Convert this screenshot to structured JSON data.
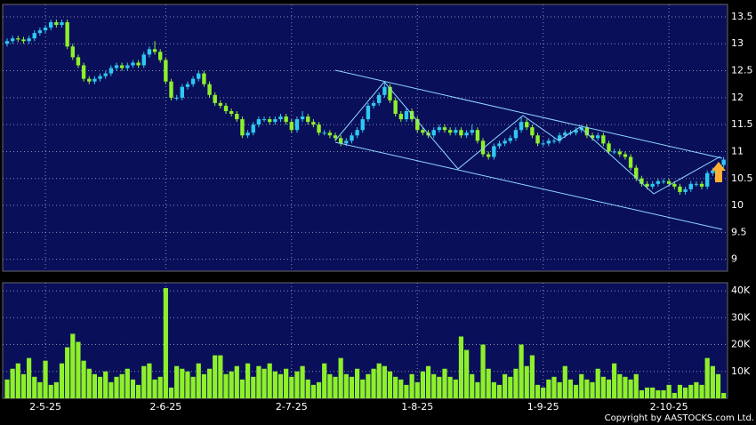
{
  "chart_data": {
    "type": "candlestick",
    "copyright": "Copyright by AASTOCKS.com Ltd.",
    "up_color": "#2ec8f0",
    "down_color": "#8ef02a",
    "volume_color": "#8ef02a",
    "grid": true,
    "categories": [
      null,
      null,
      null,
      null,
      null,
      null,
      null,
      "2-5-25",
      null,
      null,
      null,
      null,
      null,
      null,
      null,
      null,
      null,
      null,
      null,
      null,
      null,
      null,
      null,
      null,
      null,
      null,
      null,
      null,
      null,
      "2-6-25",
      null,
      null,
      null,
      null,
      null,
      null,
      null,
      null,
      null,
      null,
      null,
      null,
      null,
      null,
      null,
      null,
      null,
      null,
      null,
      null,
      null,
      null,
      "2-7-25",
      null,
      null,
      null,
      null,
      null,
      null,
      null,
      null,
      null,
      null,
      null,
      null,
      null,
      null,
      null,
      null,
      null,
      null,
      null,
      null,
      null,
      null,
      "1-8-25",
      null,
      null,
      null,
      null,
      null,
      null,
      null,
      null,
      null,
      null,
      null,
      null,
      null,
      null,
      null,
      null,
      null,
      null,
      null,
      null,
      null,
      null,
      "1-9-25",
      null,
      null,
      null,
      null,
      null,
      null,
      null,
      null,
      null,
      null,
      null,
      null,
      null,
      null,
      null,
      null,
      null,
      null,
      null,
      null,
      null,
      null,
      "2-10-25",
      null,
      null,
      null,
      null,
      null,
      null,
      null,
      null,
      null,
      null
    ],
    "ohlc": [
      [
        13.0,
        13.1,
        12.95,
        13.05
      ],
      [
        13.05,
        13.15,
        13.0,
        13.1
      ],
      [
        13.1,
        13.15,
        13.03,
        13.08
      ],
      [
        13.08,
        13.13,
        13.0,
        13.05
      ],
      [
        13.05,
        13.15,
        13.0,
        13.1
      ],
      [
        13.1,
        13.25,
        13.05,
        13.2
      ],
      [
        13.2,
        13.3,
        13.15,
        13.25
      ],
      [
        13.25,
        13.35,
        13.2,
        13.3
      ],
      [
        13.3,
        13.45,
        13.25,
        13.4
      ],
      [
        13.4,
        13.45,
        13.3,
        13.35
      ],
      [
        13.35,
        13.45,
        13.3,
        13.4
      ],
      [
        13.4,
        13.45,
        12.9,
        12.95
      ],
      [
        12.95,
        13.0,
        12.7,
        12.75
      ],
      [
        12.75,
        12.8,
        12.55,
        12.6
      ],
      [
        12.6,
        12.65,
        12.3,
        12.35
      ],
      [
        12.35,
        12.4,
        12.25,
        12.3
      ],
      [
        12.3,
        12.4,
        12.25,
        12.35
      ],
      [
        12.35,
        12.45,
        12.3,
        12.4
      ],
      [
        12.4,
        12.5,
        12.35,
        12.45
      ],
      [
        12.45,
        12.6,
        12.4,
        12.55
      ],
      [
        12.55,
        12.65,
        12.5,
        12.6
      ],
      [
        12.6,
        12.65,
        12.5,
        12.55
      ],
      [
        12.55,
        12.65,
        12.5,
        12.6
      ],
      [
        12.6,
        12.7,
        12.55,
        12.65
      ],
      [
        12.65,
        12.7,
        12.55,
        12.6
      ],
      [
        12.6,
        12.85,
        12.55,
        12.8
      ],
      [
        12.8,
        12.95,
        12.75,
        12.9
      ],
      [
        12.9,
        13.05,
        12.8,
        12.85
      ],
      [
        12.85,
        12.9,
        12.65,
        12.7
      ],
      [
        12.7,
        12.75,
        12.25,
        12.3
      ],
      [
        12.3,
        12.35,
        11.95,
        12.0
      ],
      [
        12.0,
        12.05,
        11.95,
        12.0
      ],
      [
        12.0,
        12.25,
        11.95,
        12.2
      ],
      [
        12.2,
        12.3,
        12.15,
        12.25
      ],
      [
        12.25,
        12.4,
        12.2,
        12.35
      ],
      [
        12.35,
        12.5,
        12.3,
        12.45
      ],
      [
        12.45,
        12.5,
        12.2,
        12.25
      ],
      [
        12.25,
        12.3,
        12.0,
        12.05
      ],
      [
        12.05,
        12.1,
        11.85,
        11.9
      ],
      [
        11.9,
        11.95,
        11.8,
        11.85
      ],
      [
        11.85,
        11.9,
        11.7,
        11.75
      ],
      [
        11.75,
        11.8,
        11.65,
        11.7
      ],
      [
        11.7,
        11.75,
        11.55,
        11.6
      ],
      [
        11.6,
        11.65,
        11.25,
        11.3
      ],
      [
        11.3,
        11.4,
        11.25,
        11.35
      ],
      [
        11.35,
        11.55,
        11.3,
        11.5
      ],
      [
        11.5,
        11.65,
        11.45,
        11.6
      ],
      [
        11.6,
        11.65,
        11.55,
        11.6
      ],
      [
        11.6,
        11.65,
        11.5,
        11.55
      ],
      [
        11.55,
        11.65,
        11.5,
        11.6
      ],
      [
        11.6,
        11.7,
        11.55,
        11.65
      ],
      [
        11.65,
        11.7,
        11.5,
        11.55
      ],
      [
        11.55,
        11.6,
        11.35,
        11.4
      ],
      [
        11.4,
        11.65,
        11.35,
        11.6
      ],
      [
        11.6,
        11.75,
        11.55,
        11.65
      ],
      [
        11.65,
        11.7,
        11.5,
        11.55
      ],
      [
        11.55,
        11.6,
        11.45,
        11.5
      ],
      [
        11.5,
        11.55,
        11.3,
        11.35
      ],
      [
        11.35,
        11.4,
        11.3,
        11.35
      ],
      [
        11.35,
        11.4,
        11.25,
        11.3
      ],
      [
        11.3,
        11.35,
        11.2,
        11.25
      ],
      [
        11.25,
        11.3,
        11.1,
        11.15
      ],
      [
        11.15,
        11.25,
        11.1,
        11.2
      ],
      [
        11.2,
        11.35,
        11.15,
        11.3
      ],
      [
        11.3,
        11.45,
        11.25,
        11.4
      ],
      [
        11.4,
        11.65,
        11.35,
        11.6
      ],
      [
        11.6,
        11.9,
        11.55,
        11.85
      ],
      [
        11.85,
        11.95,
        11.8,
        11.9
      ],
      [
        11.9,
        12.1,
        11.85,
        12.05
      ],
      [
        12.05,
        12.3,
        12.0,
        12.2
      ],
      [
        12.2,
        12.25,
        11.9,
        11.95
      ],
      [
        11.95,
        12.0,
        11.65,
        11.7
      ],
      [
        11.7,
        11.75,
        11.55,
        11.6
      ],
      [
        11.6,
        11.8,
        11.55,
        11.75
      ],
      [
        11.75,
        11.8,
        11.55,
        11.6
      ],
      [
        11.6,
        11.65,
        11.35,
        11.4
      ],
      [
        11.4,
        11.45,
        11.3,
        11.35
      ],
      [
        11.35,
        11.4,
        11.25,
        11.3
      ],
      [
        11.3,
        11.45,
        11.25,
        11.4
      ],
      [
        11.4,
        11.5,
        11.35,
        11.45
      ],
      [
        11.45,
        11.5,
        11.35,
        11.4
      ],
      [
        11.4,
        11.45,
        11.3,
        11.35
      ],
      [
        11.35,
        11.45,
        11.3,
        11.4
      ],
      [
        11.4,
        11.45,
        11.25,
        11.3
      ],
      [
        11.3,
        11.4,
        11.25,
        11.35
      ],
      [
        11.35,
        11.5,
        11.3,
        11.4
      ],
      [
        11.4,
        11.45,
        11.15,
        11.2
      ],
      [
        11.2,
        11.25,
        10.9,
        10.95
      ],
      [
        10.95,
        11.0,
        10.85,
        10.9
      ],
      [
        10.9,
        11.15,
        10.85,
        11.1
      ],
      [
        11.1,
        11.2,
        11.05,
        11.15
      ],
      [
        11.15,
        11.25,
        11.1,
        11.2
      ],
      [
        11.2,
        11.3,
        11.15,
        11.25
      ],
      [
        11.25,
        11.45,
        11.2,
        11.4
      ],
      [
        11.4,
        11.65,
        11.35,
        11.55
      ],
      [
        11.55,
        11.6,
        11.4,
        11.45
      ],
      [
        11.45,
        11.5,
        11.25,
        11.3
      ],
      [
        11.3,
        11.35,
        11.1,
        11.15
      ],
      [
        11.15,
        11.2,
        11.1,
        11.15
      ],
      [
        11.15,
        11.25,
        11.1,
        11.2
      ],
      [
        11.2,
        11.25,
        11.15,
        11.2
      ],
      [
        11.2,
        11.35,
        11.15,
        11.3
      ],
      [
        11.3,
        11.4,
        11.25,
        11.35
      ],
      [
        11.35,
        11.4,
        11.3,
        11.35
      ],
      [
        11.35,
        11.45,
        11.3,
        11.4
      ],
      [
        11.4,
        11.5,
        11.35,
        11.45
      ],
      [
        11.45,
        11.5,
        11.25,
        11.3
      ],
      [
        11.3,
        11.35,
        11.2,
        11.25
      ],
      [
        11.25,
        11.35,
        11.2,
        11.3
      ],
      [
        11.3,
        11.35,
        11.1,
        11.15
      ],
      [
        11.15,
        11.2,
        10.95,
        11.0
      ],
      [
        11.0,
        11.05,
        10.95,
        11.0
      ],
      [
        11.0,
        11.05,
        10.9,
        10.95
      ],
      [
        10.95,
        11.0,
        10.85,
        10.9
      ],
      [
        10.9,
        10.95,
        10.65,
        10.7
      ],
      [
        10.7,
        10.75,
        10.45,
        10.5
      ],
      [
        10.5,
        10.55,
        10.35,
        10.4
      ],
      [
        10.4,
        10.45,
        10.3,
        10.35
      ],
      [
        10.35,
        10.45,
        10.3,
        10.4
      ],
      [
        10.4,
        10.5,
        10.35,
        10.45
      ],
      [
        10.45,
        10.5,
        10.4,
        10.45
      ],
      [
        10.45,
        10.5,
        10.35,
        10.4
      ],
      [
        10.4,
        10.45,
        10.3,
        10.35
      ],
      [
        10.35,
        10.4,
        10.2,
        10.25
      ],
      [
        10.25,
        10.35,
        10.2,
        10.3
      ],
      [
        10.3,
        10.45,
        10.25,
        10.4
      ],
      [
        10.4,
        10.45,
        10.35,
        10.4
      ],
      [
        10.4,
        10.45,
        10.3,
        10.35
      ],
      [
        10.35,
        10.65,
        10.3,
        10.6
      ],
      [
        10.6,
        10.7,
        10.55,
        10.65
      ],
      [
        10.65,
        10.8,
        10.6,
        10.75
      ],
      [
        10.75,
        10.9,
        10.7,
        10.85
      ]
    ],
    "volume": [
      7000,
      11000,
      13000,
      9000,
      15000,
      8000,
      6000,
      14000,
      5000,
      6000,
      13000,
      19000,
      24000,
      21000,
      14000,
      11000,
      9000,
      8000,
      10000,
      6000,
      8000,
      9000,
      11000,
      7000,
      5000,
      12000,
      13000,
      7000,
      8000,
      41000,
      4000,
      12000,
      11000,
      10000,
      8000,
      13000,
      9000,
      11000,
      16000,
      16000,
      9000,
      10000,
      12000,
      7000,
      13000,
      8000,
      12000,
      11000,
      13000,
      10000,
      9000,
      11000,
      8000,
      10000,
      12000,
      7000,
      5000,
      6000,
      13000,
      9000,
      8000,
      15000,
      9000,
      8000,
      11000,
      7000,
      9000,
      11000,
      13000,
      12000,
      10000,
      8000,
      7000,
      5000,
      9000,
      6000,
      10000,
      12000,
      9000,
      8000,
      11000,
      8000,
      7000,
      23000,
      18000,
      9000,
      6000,
      20000,
      11000,
      6000,
      5000,
      9000,
      8000,
      11000,
      20000,
      12000,
      16000,
      5000,
      4000,
      7000,
      8000,
      6000,
      12000,
      7000,
      5000,
      9000,
      7000,
      6000,
      11000,
      8000,
      7000,
      13000,
      9000,
      8000,
      7000,
      9000,
      3000,
      4000,
      4000,
      3000,
      3000,
      5000,
      2000,
      5000,
      4000,
      5000,
      6000,
      5000,
      15000,
      12000,
      9000,
      2000
    ],
    "ylim": [
      8.78,
      13.73
    ],
    "yticks": [
      9,
      9.5,
      10,
      10.5,
      11,
      11.5,
      12,
      12.5,
      13,
      13.5
    ],
    "vlim": [
      0,
      43000
    ],
    "vticks": [
      {
        "value": 10000,
        "label": "10K"
      },
      {
        "value": 20000,
        "label": "20K"
      },
      {
        "value": 30000,
        "label": "30K"
      },
      {
        "value": 40000,
        "label": "40K"
      }
    ]
  }
}
